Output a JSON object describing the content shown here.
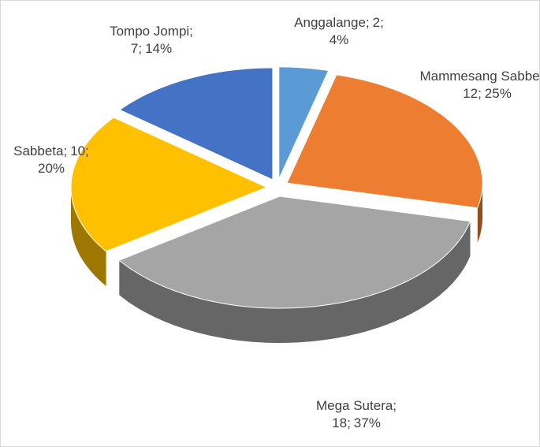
{
  "chart_data": {
    "type": "pie",
    "categories": [
      "Anggalange;",
      "Mammesang Sabbeta;",
      "Mega Sutera;",
      "Sabbeta;",
      "Tompo Jompi;"
    ],
    "values": [
      2,
      12,
      18,
      10,
      7
    ],
    "value_labels": [
      "2;",
      "12;",
      "18;",
      "10;",
      "7;"
    ],
    "percents": [
      4,
      25,
      37,
      20,
      14
    ],
    "percent_labels": [
      "4%",
      "25%",
      "37%",
      "20%",
      "14%"
    ],
    "colors": [
      "#5b9bd5",
      "#ed7d31",
      "#a5a5a5",
      "#ffc000",
      "#4472c4"
    ]
  }
}
